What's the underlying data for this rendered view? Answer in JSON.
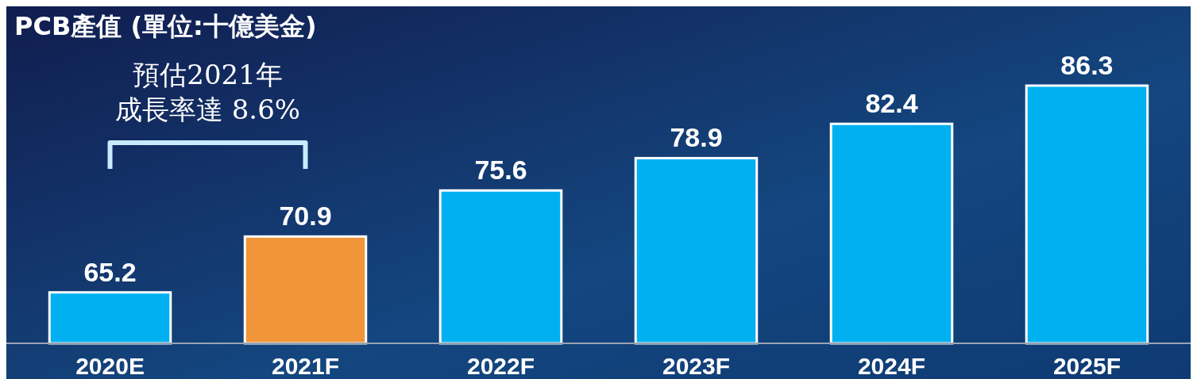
{
  "chart_data": {
    "type": "bar",
    "title": "PCB產值 (單位:十億美金)",
    "categories": [
      "2020E",
      "2021F",
      "2022F",
      "2023F",
      "2024F",
      "2025F"
    ],
    "values": [
      65.2,
      70.9,
      75.6,
      78.9,
      82.4,
      86.3
    ],
    "colors": [
      "#00b0f0",
      "#f0953a",
      "#00b0f0",
      "#00b0f0",
      "#00b0f0",
      "#00b0f0"
    ],
    "ylim": [
      60,
      86.3
    ],
    "tick_labels": "x",
    "data_labels": true,
    "annotations": [
      "預估2021年",
      "成長率達 8.6%"
    ]
  }
}
